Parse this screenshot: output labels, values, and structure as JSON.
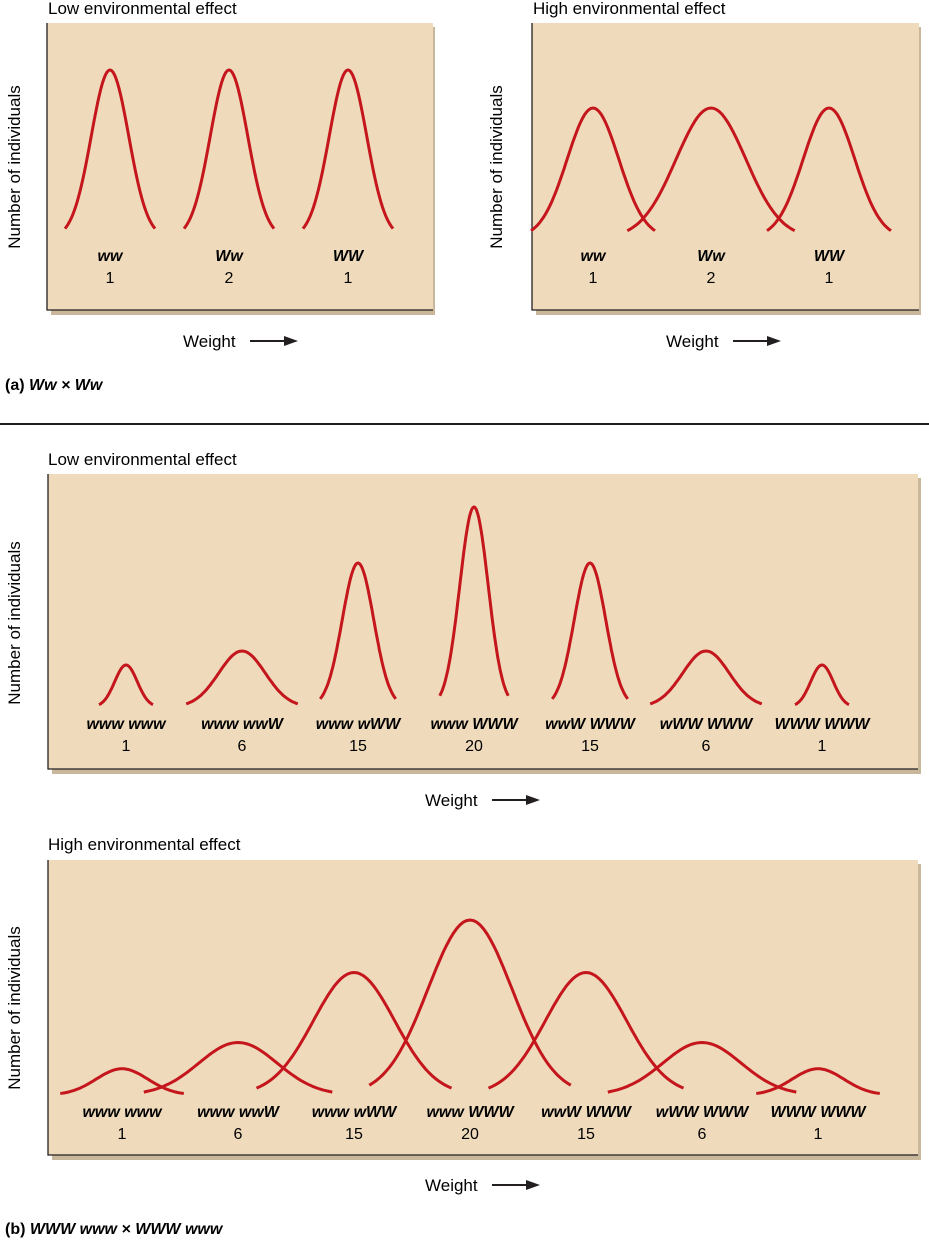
{
  "colors": {
    "curve": "#c4161c",
    "panel_bg": "#efdbbb",
    "panel_shadow": "#c9b79b",
    "axis": "#231f20"
  },
  "y_axis_label": "Number of individuals",
  "x_axis_label": "Weight",
  "x_axis_arrow": "right-arrow-icon",
  "caption_a": {
    "label": "(a)",
    "cross": "Ww × Ww"
  },
  "caption_b": {
    "label": "(b)",
    "cross": "WWW www × WWW www"
  },
  "chart_data": [
    {
      "type": "line",
      "title": "Low environmental effect",
      "ylabel": "Number of individuals",
      "xlabel": "Weight",
      "categories": [
        "ww",
        "Ww",
        "WW"
      ],
      "values": [
        1,
        2,
        1
      ],
      "spread": "narrow",
      "overlap": false
    },
    {
      "type": "line",
      "title": "High environmental effect",
      "ylabel": "Number of individuals",
      "xlabel": "Weight",
      "categories": [
        "ww",
        "Ww",
        "WW"
      ],
      "values": [
        1,
        2,
        1
      ],
      "spread": "wide",
      "overlap": true
    },
    {
      "type": "line",
      "title": "Low environmental effect",
      "ylabel": "Number of individuals",
      "xlabel": "Weight",
      "categories": [
        "www www",
        "www wwW",
        "www wWW",
        "www WWW",
        "wwW WWW",
        "wWW WWW",
        "WWW WWW"
      ],
      "values": [
        1,
        6,
        15,
        20,
        15,
        6,
        1
      ],
      "spread": "narrow",
      "overlap": true
    },
    {
      "type": "line",
      "title": "High environmental effect",
      "ylabel": "Number of individuals",
      "xlabel": "Weight",
      "categories": [
        "www www",
        "www wwW",
        "www wWW",
        "www WWW",
        "wwW WWW",
        "wWW WWW",
        "WWW WWW"
      ],
      "values": [
        1,
        6,
        15,
        20,
        15,
        6,
        1
      ],
      "spread": "wide",
      "overlap": true
    }
  ]
}
